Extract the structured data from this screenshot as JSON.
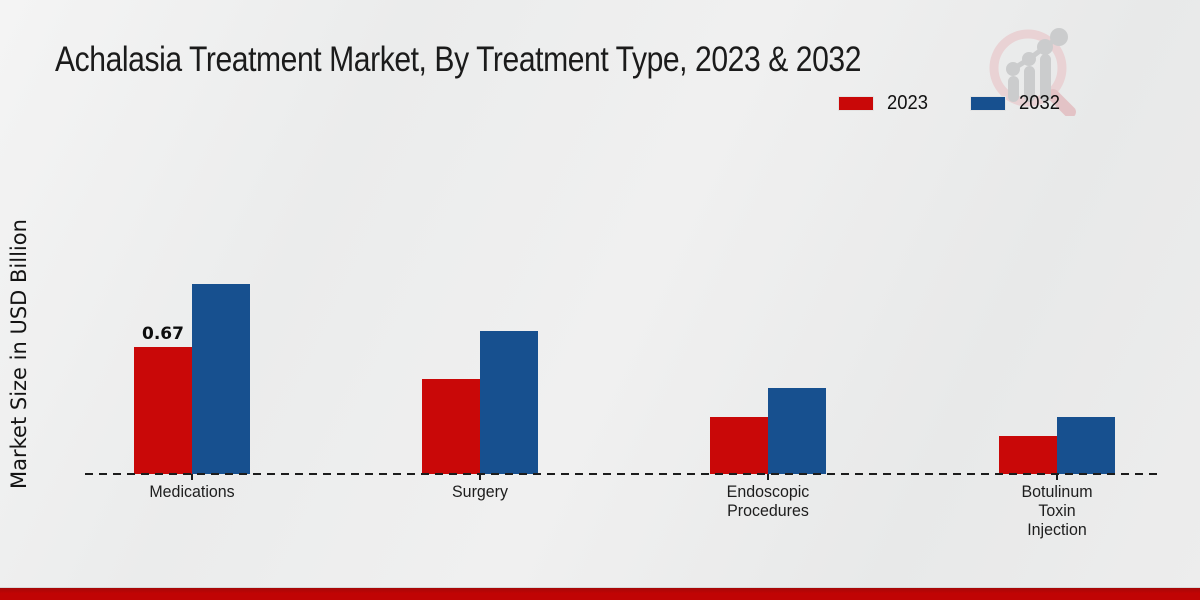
{
  "chart_data": {
    "type": "bar",
    "title": "Achalasia Treatment Market, By Treatment Type, 2023 & 2032",
    "xlabel": "",
    "ylabel": "Market Size in USD Billion",
    "categories": [
      "Medications",
      "Surgery",
      "Endoscopic Procedures",
      "Botulinum Toxin Injection"
    ],
    "category_display_lines": [
      [
        "Medications"
      ],
      [
        "Surgery"
      ],
      [
        "Endoscopic",
        "Procedures"
      ],
      [
        "Botulinum",
        "Toxin",
        "Injection"
      ]
    ],
    "series": [
      {
        "name": "2023",
        "color": "#c90808",
        "values": [
          0.67,
          0.5,
          0.3,
          0.2
        ],
        "data_labels": [
          "0.67",
          "",
          "",
          ""
        ]
      },
      {
        "name": "2032",
        "color": "#17508f",
        "values": [
          1.0,
          0.75,
          0.45,
          0.3
        ],
        "data_labels": [
          "",
          "",
          "",
          ""
        ]
      }
    ],
    "ylim": [
      0,
      1.05
    ],
    "grid": "off",
    "legend_position": "top-right",
    "axis_style": "dashed-baseline-only"
  },
  "branding": {
    "logo_icon": "magnifier-growth-chart-logo",
    "logo_ring_color": "#e9d2d4",
    "logo_bar_color": "#cbcccd"
  },
  "theme": {
    "background": "#ebecec",
    "title_color": "#1b1b1b",
    "axis_color": "#1c1c1c",
    "footer_bar_color": "#c00404"
  }
}
